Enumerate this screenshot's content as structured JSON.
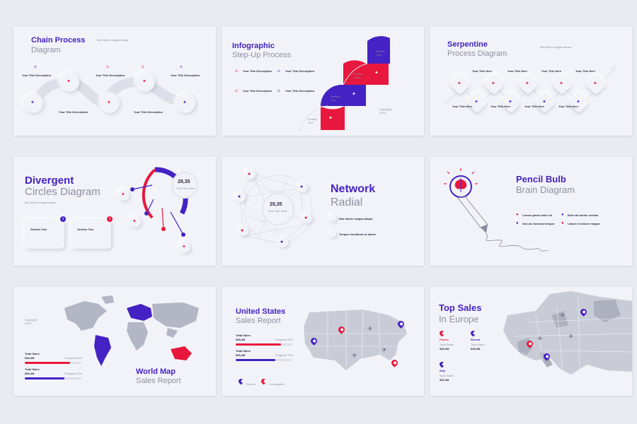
{
  "colors": {
    "accent_purple": "#4422c4",
    "accent_red": "#e8173d",
    "grey_text": "#8c8fa3",
    "map_grey": "#b3b6c4"
  },
  "desc_text": "Nisl dolore magna aliqua",
  "title_here": "Your Title Here",
  "title_desc": "Your Title Description",
  "copyright": "Copyright 2023",
  "slides": {
    "chain": {
      "title1": "Chain Process",
      "title2": "Diagram",
      "note": "Nisl dolore magna aliqua"
    },
    "stepup": {
      "title1": "Infographic",
      "title2": "Step-Up Process",
      "sections": [
        "Section One",
        "Section Two",
        "Section Three",
        "Section Four"
      ],
      "copyright": "Copyright 2023"
    },
    "serpentine": {
      "title1": "Serpentine",
      "title2": "Process Diagram",
      "note": "Nisl dolore magna aliqua"
    },
    "divergent": {
      "title1": "Divergent",
      "title2": "Circles Diagram",
      "value": "29,35",
      "value_label": "Your Title Here",
      "sections": [
        "Section One",
        "Section Two"
      ],
      "badges": [
        "1",
        "2"
      ]
    },
    "network": {
      "title1": "Network",
      "title2": "Radial",
      "value": "29,35",
      "value_label": "Your Title Here",
      "items": [
        "Nisl dolore magna aliqua",
        "Tempor incididunt ut labore"
      ]
    },
    "bulb": {
      "title1": "Pencil Bulb",
      "title2": "Brain Diagram",
      "items": [
        "Lorem ipsum dolor sit",
        "Enim ad minim veniam",
        "Sed do eiusmod tempor",
        "Labore et dolore magna"
      ]
    },
    "world": {
      "title1": "World Map",
      "title2": "Sales Report",
      "copyright": "Copyright 2023",
      "rows": [
        {
          "label": "Total Sales",
          "amount": "$35,4M",
          "progress": "Progress 80%",
          "pct": 80
        },
        {
          "label": "Total Sales",
          "amount": "$35,4M",
          "progress": "Progress 70%",
          "pct": 70
        }
      ]
    },
    "us": {
      "title1": "United States",
      "title2": "Sales Report",
      "rows": [
        {
          "label": "Total Sales",
          "amount": "$35,4M",
          "progress": "Progress 80%",
          "pct": 80
        },
        {
          "label": "Total Sales",
          "amount": "$35,4M",
          "progress": "Progress 70%",
          "pct": 70
        }
      ],
      "legend": [
        "Denver",
        "Los Angeles"
      ]
    },
    "europe": {
      "title1": "Top Sales",
      "title2": "In Europe",
      "countries": [
        {
          "name": "France",
          "label": "Total Sales",
          "amount": "$35,4M"
        },
        {
          "name": "Russia",
          "label": "Total Sales",
          "amount": "$35,4M"
        },
        {
          "name": "Italy",
          "label": "Total Sales",
          "amount": "$35,4M"
        }
      ]
    }
  }
}
